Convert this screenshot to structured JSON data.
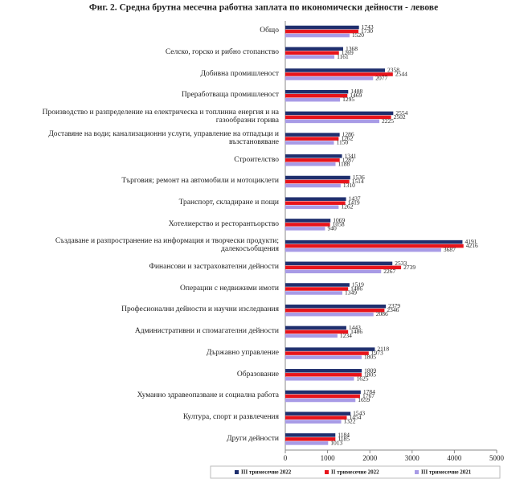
{
  "chart_data": {
    "type": "hbar",
    "title": "Фиг. 2. Средна брутна месечна работна заплата по икономически дейности - левове",
    "categories": [
      "Общо",
      "Селско, горско и рибно стопанство",
      "Добивна промишленост",
      "Преработваща промишленост",
      "Производство и разпределение на електрическа и топлинна енергия и на газообразни горива",
      "Доставяне на води; канализационни услуги, управление на отпадъци и възстановяване",
      "Строителство",
      "Търговия; ремонт на автомобили и мотоциклети",
      "Транспорт, складиране и пощи",
      "Хотелиерство и ресторантьорство",
      "Създаване и разпространение на информация и творчески продукти; далекосъобщения",
      "Финансови и застрахователни дейности",
      "Операции с недвижими имоти",
      "Професионални дейности и научни изследвания",
      "Административни и спомагателни дейности",
      "Държавно управление",
      "Образование",
      "Хуманно здравеопазване и социална работа",
      "Култура, спорт и развлечения",
      "Други дейности"
    ],
    "series": [
      {
        "name": "III тримесечие 2022",
        "color": "#1f2f6e",
        "values": [
          1743,
          1368,
          2358,
          1488,
          2554,
          1286,
          1341,
          1536,
          1437,
          1069,
          4191,
          2533,
          1519,
          2379,
          1443,
          2118,
          1809,
          1784,
          1543,
          1184
        ]
      },
      {
        "name": "II тримесечие 2022",
        "color": "#e8141b",
        "values": [
          1730,
          1269,
          2544,
          1469,
          2502,
          1262,
          1287,
          1514,
          1419,
          1058,
          4216,
          2739,
          1486,
          2346,
          1486,
          1973,
          1805,
          1767,
          1454,
          1185
        ]
      },
      {
        "name": "III тримесечие 2021",
        "color": "#a89be6",
        "values": [
          1520,
          1161,
          2077,
          1295,
          2225,
          1150,
          1188,
          1310,
          1262,
          940,
          3687,
          2267,
          1349,
          2086,
          1234,
          1805,
          1625,
          1659,
          1322,
          1013
        ]
      }
    ],
    "xlim": [
      0,
      5000
    ],
    "xticks": [
      0,
      1000,
      2000,
      3000,
      4000,
      5000
    ],
    "grid": false,
    "legend": "bottom"
  }
}
